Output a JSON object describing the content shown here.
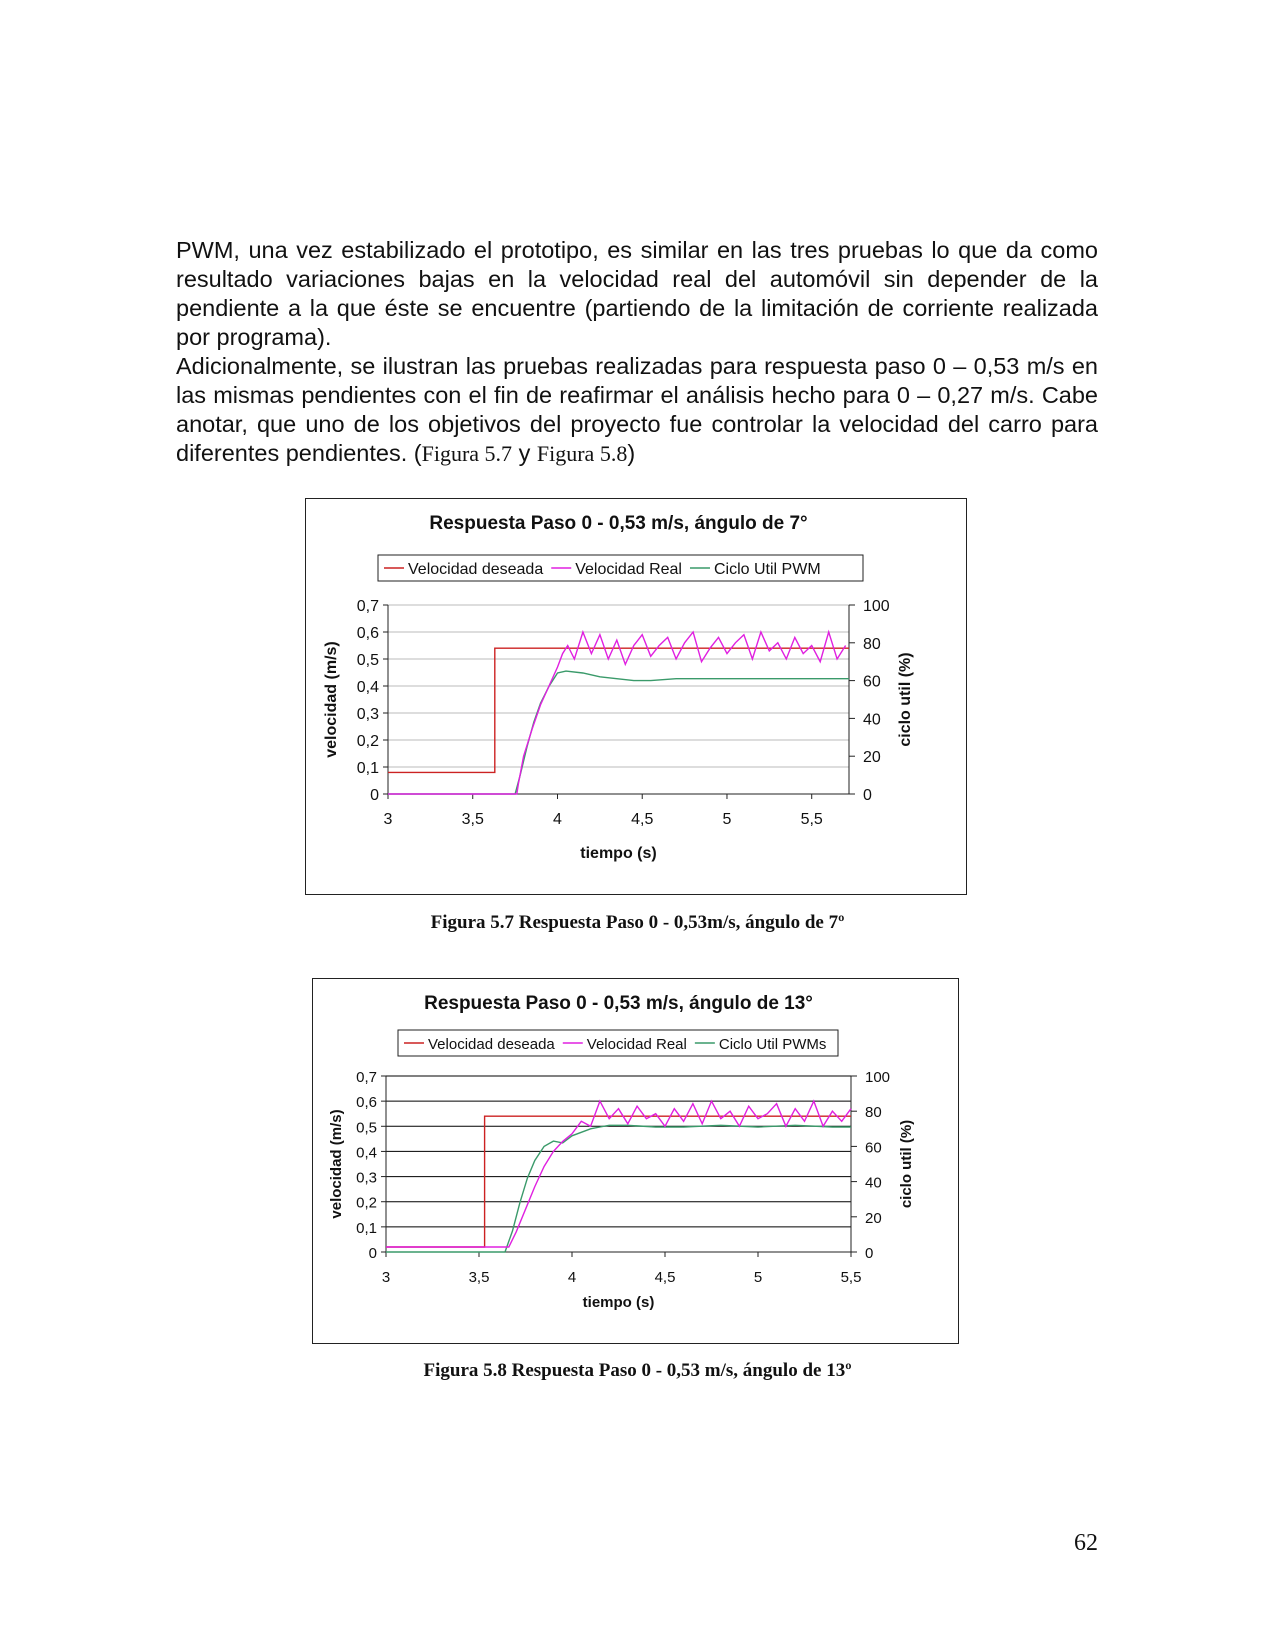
{
  "document": {
    "paragraph1": "PWM, una vez estabilizado el prototipo, es similar en las tres pruebas lo que da como resultado variaciones bajas en la velocidad real del automóvil sin depender de la pendiente a la que éste se encuentre  (partiendo de la limitación de corriente realizada por programa).",
    "paragraph2_text": "Adicionalmente, se ilustran las pruebas realizadas para respuesta paso 0 – 0,53 m/s en las mismas pendientes con el fin de reafirmar el análisis hecho para 0 – 0,27 m/s. Cabe anotar, que uno de los objetivos del proyecto fue controlar la velocidad del carro para diferentes pendientes. (",
    "paragraph2_ref1": "Figura 5.7",
    "paragraph2_and": " y ",
    "paragraph2_ref2": "Figura 5.8",
    "paragraph2_close": ")",
    "caption1": "Figura 5.7 Respuesta Paso 0 - 0,53m/s, ángulo de 7º",
    "caption2": "Figura 5.8 Respuesta Paso 0 - 0,53 m/s, ángulo de 13º",
    "page_number": "62"
  },
  "chart_data": [
    {
      "type": "line",
      "title": "Respuesta Paso 0 - 0,53 m/s, ángulo de 7°",
      "xlabel": "tiempo (s)",
      "ylabel": "velocidad (m/s)",
      "y2label": "ciclo util (%)",
      "xlim": [
        3,
        5.72
      ],
      "ylim": [
        0,
        0.7
      ],
      "y2lim": [
        0,
        100
      ],
      "x_ticks": [
        "3",
        "3,5",
        "4",
        "4,5",
        "5",
        "5,5"
      ],
      "x_tick_values": [
        3,
        3.5,
        4,
        4.5,
        5,
        5.5
      ],
      "y_ticks": [
        "0",
        "0,1",
        "0,2",
        "0,3",
        "0,4",
        "0,5",
        "0,6",
        "0,7"
      ],
      "y2_ticks": [
        "0",
        "20",
        "40",
        "60",
        "80",
        "100"
      ],
      "gridlines": "horizontal, light",
      "legend_position": "top",
      "series": [
        {
          "name": "Velocidad deseada",
          "color": "#cc2222",
          "axis": "left",
          "x": [
            3,
            3.63,
            3.63,
            5.72
          ],
          "y": [
            0.08,
            0.08,
            0.54,
            0.54
          ]
        },
        {
          "name": "Velocidad Real",
          "color": "#e020e0",
          "axis": "left",
          "x": [
            3,
            3.76,
            3.77,
            3.8,
            3.85,
            3.9,
            3.95,
            4.0,
            4.03,
            4.06,
            4.1,
            4.15,
            4.2,
            4.25,
            4.3,
            4.35,
            4.4,
            4.45,
            4.5,
            4.55,
            4.6,
            4.65,
            4.7,
            4.75,
            4.8,
            4.85,
            4.9,
            4.95,
            5.0,
            5.05,
            5.1,
            5.15,
            5.2,
            5.25,
            5.3,
            5.35,
            5.4,
            5.45,
            5.5,
            5.55,
            5.6,
            5.65,
            5.7
          ],
          "y": [
            0,
            0,
            0.04,
            0.14,
            0.24,
            0.33,
            0.4,
            0.47,
            0.52,
            0.55,
            0.5,
            0.6,
            0.52,
            0.59,
            0.5,
            0.57,
            0.48,
            0.55,
            0.59,
            0.51,
            0.55,
            0.58,
            0.5,
            0.56,
            0.6,
            0.49,
            0.54,
            0.58,
            0.52,
            0.56,
            0.59,
            0.5,
            0.6,
            0.53,
            0.56,
            0.5,
            0.58,
            0.52,
            0.55,
            0.49,
            0.6,
            0.5,
            0.55
          ]
        },
        {
          "name": "Ciclo Util PWM",
          "color": "#3a9a6a",
          "axis": "right",
          "x": [
            3,
            3.75,
            3.78,
            3.82,
            3.86,
            3.9,
            3.95,
            4.0,
            4.05,
            4.15,
            4.25,
            4.35,
            4.45,
            4.55,
            4.7,
            4.9,
            5.1,
            5.3,
            5.5,
            5.72
          ],
          "y": [
            0,
            0,
            10,
            25,
            38,
            48,
            57,
            64,
            65,
            64,
            62,
            61,
            60,
            60,
            61,
            61,
            61,
            61,
            61,
            61
          ]
        }
      ]
    },
    {
      "type": "line",
      "title": "Respuesta Paso 0 - 0,53 m/s, ángulo de 13°",
      "xlabel": "tiempo (s)",
      "ylabel": "velocidad (m/s)",
      "y2label": "ciclo util (%)",
      "xlim": [
        3,
        5.5
      ],
      "ylim": [
        0,
        0.7
      ],
      "y2lim": [
        0,
        100
      ],
      "x_ticks": [
        "3",
        "3,5",
        "4",
        "4,5",
        "5",
        "5,5"
      ],
      "x_tick_values": [
        3,
        3.5,
        4,
        4.5,
        5,
        5.5
      ],
      "y_ticks": [
        "0",
        "0,1",
        "0,2",
        "0,3",
        "0,4",
        "0,5",
        "0,6",
        "0,7"
      ],
      "y2_ticks": [
        "0",
        "20",
        "40",
        "60",
        "80",
        "100"
      ],
      "gridlines": "horizontal, dark",
      "legend_position": "top",
      "series": [
        {
          "name": "Velocidad deseada",
          "color": "#cc2222",
          "axis": "left",
          "x": [
            3,
            3.53,
            3.53,
            5.5
          ],
          "y": [
            0.02,
            0.02,
            0.54,
            0.54
          ]
        },
        {
          "name": "Velocidad Real",
          "color": "#e020e0",
          "axis": "left",
          "x": [
            3,
            3.66,
            3.7,
            3.75,
            3.8,
            3.85,
            3.9,
            3.95,
            4.0,
            4.05,
            4.1,
            4.15,
            4.2,
            4.25,
            4.3,
            4.35,
            4.4,
            4.45,
            4.5,
            4.55,
            4.6,
            4.65,
            4.7,
            4.75,
            4.8,
            4.85,
            4.9,
            4.95,
            5.0,
            5.05,
            5.1,
            5.15,
            5.2,
            5.25,
            5.3,
            5.35,
            5.4,
            5.45,
            5.5
          ],
          "y": [
            0.02,
            0.02,
            0.08,
            0.17,
            0.26,
            0.34,
            0.4,
            0.44,
            0.47,
            0.52,
            0.5,
            0.6,
            0.53,
            0.57,
            0.51,
            0.58,
            0.53,
            0.55,
            0.5,
            0.57,
            0.52,
            0.59,
            0.51,
            0.6,
            0.53,
            0.56,
            0.5,
            0.58,
            0.53,
            0.55,
            0.59,
            0.5,
            0.57,
            0.52,
            0.6,
            0.5,
            0.56,
            0.52,
            0.57
          ]
        },
        {
          "name": "Ciclo Util PWMs",
          "color": "#3a9a6a",
          "axis": "right",
          "x": [
            3,
            3.64,
            3.68,
            3.72,
            3.76,
            3.8,
            3.85,
            3.9,
            3.95,
            4.0,
            4.05,
            4.1,
            4.15,
            4.2,
            4.3,
            4.45,
            4.6,
            4.8,
            5.0,
            5.2,
            5.4,
            5.5
          ],
          "y": [
            0,
            0,
            12,
            28,
            42,
            52,
            60,
            63,
            62,
            66,
            68,
            70,
            71,
            72,
            72,
            71,
            71,
            72,
            71,
            72,
            71,
            71
          ]
        }
      ]
    }
  ]
}
